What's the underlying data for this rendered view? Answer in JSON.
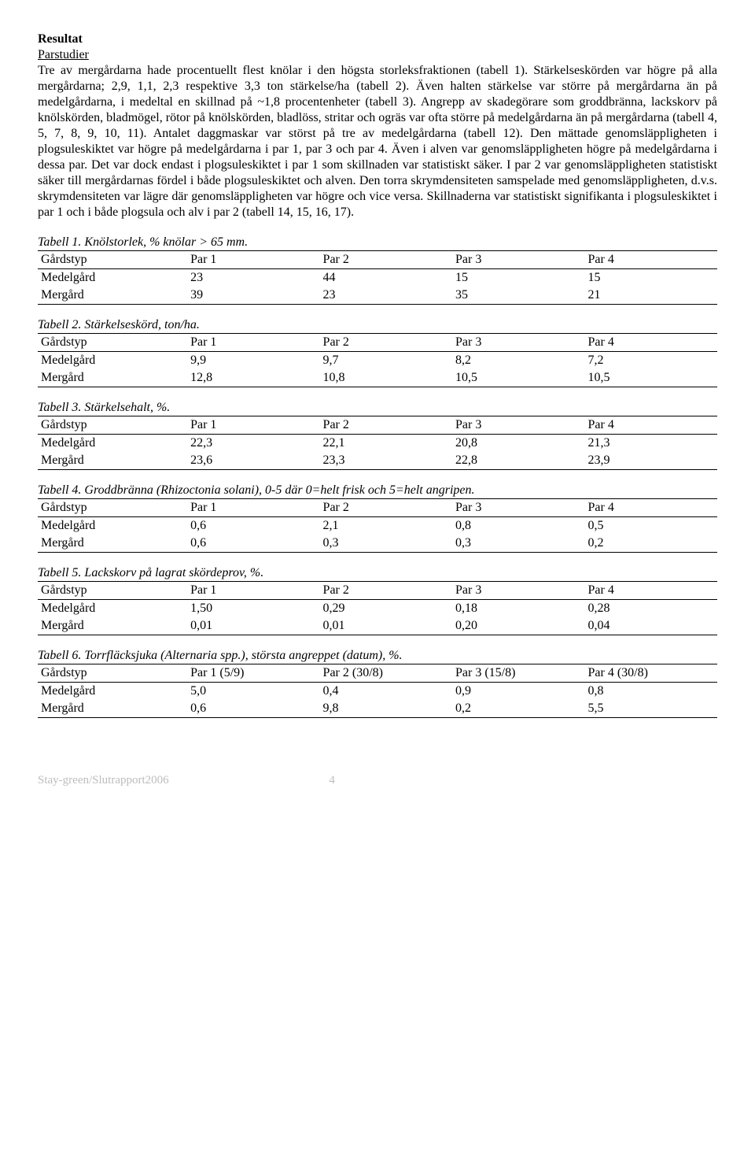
{
  "heading": "Resultat",
  "subheading": "Parstudier",
  "paragraph": "Tre av mergårdarna hade procentuellt flest knölar i den högsta storleksfraktionen (tabell 1). Stärkelseskörden var högre på alla mergårdarna; 2,9, 1,1, 2,3 respektive 3,3 ton stärkelse/ha (tabell 2). Även halten stärkelse var större på mergårdarna än på medelgårdarna, i medeltal en skillnad på ~1,8 procentenheter (tabell 3). Angrepp av skadegörare som groddbränna, lackskorv på knölskörden, bladmögel, rötor på knölskörden, bladlöss, stritar och ogräs var ofta större på medelgårdarna än på mergårdarna (tabell 4, 5, 7, 8, 9, 10, 11). Antalet daggmaskar var störst på tre av medelgårdarna (tabell 12). Den mättade genomsläppligheten i plogsuleskiktet var högre på medelgårdarna i par 1, par 3 och par 4. Även i alven var genomsläppligheten högre på medelgårdarna i dessa par. Det var dock endast i plogsuleskiktet i par 1 som skillnaden var statistiskt säker. I par 2 var genomsläppligheten statistiskt säker till mergårdarnas fördel i både plogsuleskiktet och alven. Den torra skrymdensiteten samspelade med genomsläppligheten, d.v.s. skrymdensiteten var lägre där genomsläppligheten var högre och vice versa. Skillnaderna var statistiskt signifikanta i plogsuleskiktet i par 1 och i både plogsula och alv i par 2 (tabell 14, 15, 16, 17).",
  "tables": [
    {
      "caption": "Tabell 1. Knölstorlek, % knölar > 65 mm.",
      "columns": [
        "Gårdstyp",
        "Par 1",
        "Par 2",
        "Par 3",
        "Par 4"
      ],
      "rows": [
        [
          "Medelgård",
          "23",
          "44",
          "15",
          "15"
        ],
        [
          "Mergård",
          "39",
          "23",
          "35",
          "21"
        ]
      ]
    },
    {
      "caption": "Tabell 2. Stärkelseskörd, ton/ha.",
      "columns": [
        "Gårdstyp",
        "Par 1",
        "Par 2",
        "Par 3",
        "Par 4"
      ],
      "rows": [
        [
          "Medelgård",
          "9,9",
          "9,7",
          "8,2",
          "7,2"
        ],
        [
          "Mergård",
          "12,8",
          "10,8",
          "10,5",
          "10,5"
        ]
      ]
    },
    {
      "caption": "Tabell 3. Stärkelsehalt, %.",
      "columns": [
        "Gårdstyp",
        "Par 1",
        "Par 2",
        "Par 3",
        "Par 4"
      ],
      "rows": [
        [
          "Medelgård",
          "22,3",
          "22,1",
          "20,8",
          "21,3"
        ],
        [
          "Mergård",
          "23,6",
          "23,3",
          "22,8",
          "23,9"
        ]
      ]
    },
    {
      "caption": "Tabell 4. Groddbränna (Rhizoctonia solani), 0-5 där 0=helt frisk och 5=helt angripen.",
      "columns": [
        "Gårdstyp",
        "Par 1",
        "Par 2",
        "Par 3",
        "Par 4"
      ],
      "rows": [
        [
          "Medelgård",
          "0,6",
          "2,1",
          "0,8",
          "0,5"
        ],
        [
          "Mergård",
          "0,6",
          "0,3",
          "0,3",
          "0,2"
        ]
      ]
    },
    {
      "caption": "Tabell 5. Lackskorv på lagrat skördeprov, %.",
      "columns": [
        "Gårdstyp",
        "Par 1",
        "Par 2",
        "Par 3",
        "Par 4"
      ],
      "rows": [
        [
          "Medelgård",
          "1,50",
          "0,29",
          "0,18",
          "0,28"
        ],
        [
          "Mergård",
          "0,01",
          "0,01",
          "0,20",
          "0,04"
        ]
      ]
    },
    {
      "caption": "Tabell 6. Torrfläcksjuka (Alternaria spp.), största angreppet (datum), %.",
      "columns": [
        "Gårdstyp",
        "Par 1 (5/9)",
        "Par 2 (30/8)",
        "Par 3 (15/8)",
        "Par 4 (30/8)"
      ],
      "rows": [
        [
          "Medelgård",
          "5,0",
          "0,4",
          "0,9",
          "0,8"
        ],
        [
          "Mergård",
          "0,6",
          "9,8",
          "0,2",
          "5,5"
        ]
      ]
    }
  ],
  "footer": {
    "text": "Stay-green/Slutrapport2006",
    "page": "4"
  }
}
